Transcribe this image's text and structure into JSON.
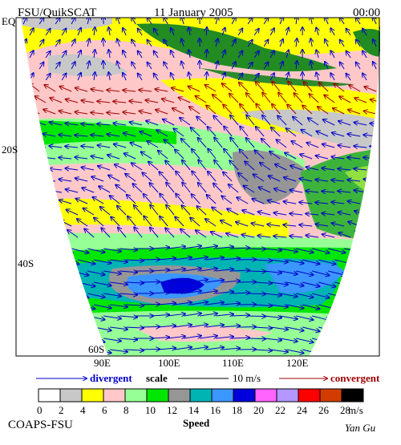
{
  "header": {
    "left": "FSU/QuikSCAT",
    "center": "11 January 2005",
    "right": "00:00"
  },
  "map": {
    "lat_labels": [
      "EQ",
      "20S",
      "40S",
      "60S"
    ],
    "lon_labels": [
      "90E",
      "100E",
      "110E",
      "120E"
    ]
  },
  "scale": {
    "divergent": "divergent",
    "scale": "scale",
    "length": "10 m/s",
    "convergent": "convergent"
  },
  "colorbar": {
    "ticks": [
      0,
      2,
      4,
      6,
      8,
      10,
      12,
      14,
      16,
      18,
      20,
      22,
      24,
      26,
      28
    ],
    "colors": [
      "#ffffff",
      "#c8c8c8",
      "#ffff00",
      "#ffc8c8",
      "#96ff96",
      "#00e600",
      "#969696",
      "#00b4b4",
      "#3c96ff",
      "#0000dc",
      "#ff64ff",
      "#b496ff",
      "#ff0000",
      "#d23c00",
      "#000000"
    ],
    "unit": "m/s",
    "label": "Speed"
  },
  "footer": {
    "left": "COAPS-FSU",
    "right": "Yan Gu"
  }
}
